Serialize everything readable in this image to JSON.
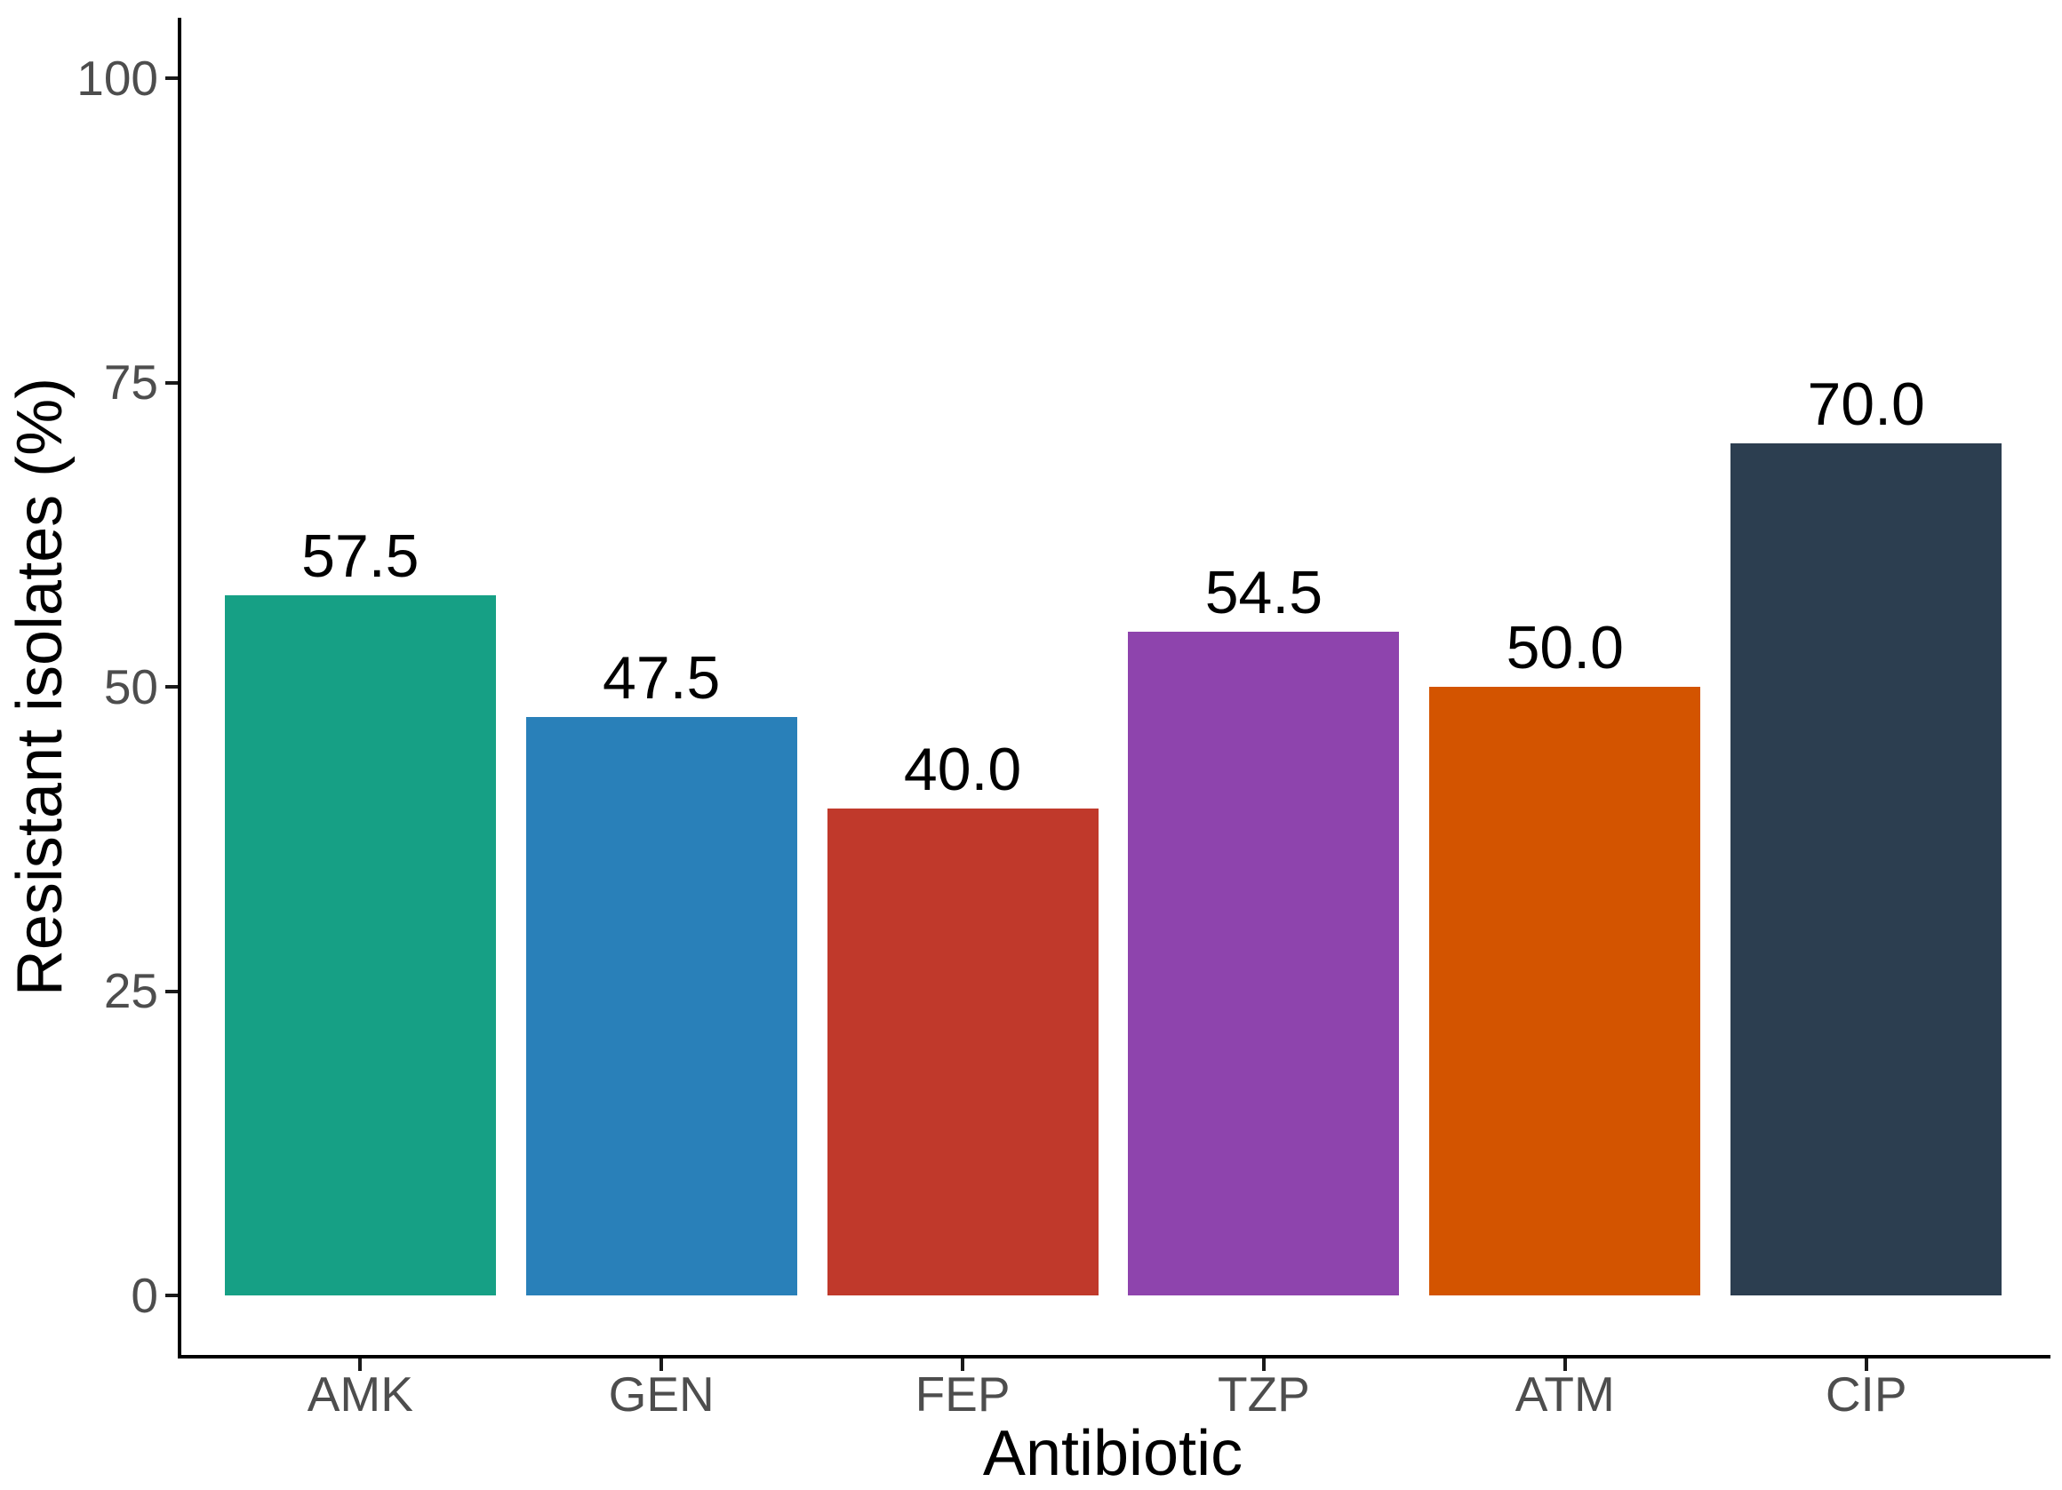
{
  "chart_data": {
    "type": "bar",
    "title": "",
    "xlabel": "Antibiotic",
    "ylabel": "Resistant isolates (%)",
    "categories": [
      "AMK",
      "GEN",
      "FEP",
      "TZP",
      "ATM",
      "CIP"
    ],
    "values": [
      57.5,
      47.5,
      40.0,
      54.5,
      50.0,
      70.0
    ],
    "value_labels": [
      "57.5",
      "47.5",
      "40.0",
      "54.5",
      "50.0",
      "70.0"
    ],
    "bar_colors": [
      "#16A085",
      "#2980B9",
      "#C0392B",
      "#8E44AD",
      "#D35400",
      "#2C3E50"
    ],
    "ylim": [
      0,
      100
    ],
    "yticks": [
      0,
      25,
      50,
      75,
      100
    ],
    "ytick_labels": [
      "0",
      "25",
      "50",
      "75",
      "100"
    ],
    "grid": false,
    "legend": "none",
    "background_color": "#FFFFFF",
    "axis_color": "#000000",
    "tick_color": "#1A1A1A",
    "tick_label_color": "#4D4D4D",
    "value_label_color": "#000000"
  }
}
